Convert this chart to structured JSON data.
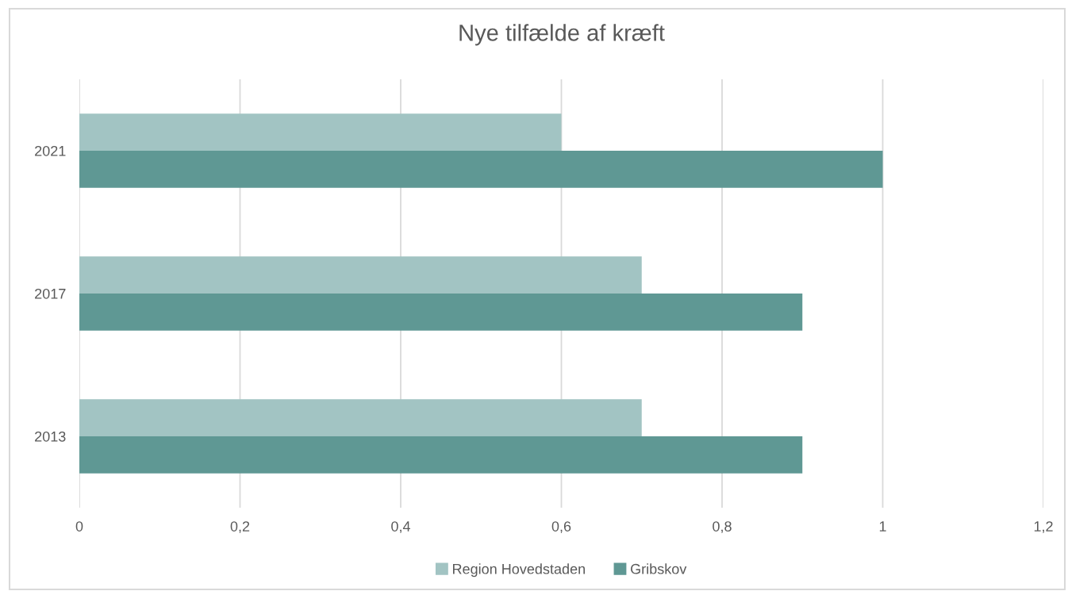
{
  "chart_data": {
    "type": "bar",
    "orientation": "horizontal",
    "title": "Nye tilfælde af kræft",
    "categories": [
      "2021",
      "2017",
      "2013"
    ],
    "series": [
      {
        "name": "Region Hovedstaden",
        "color": "#a2c4c3",
        "values": [
          0.6,
          0.7,
          0.7
        ]
      },
      {
        "name": "Gribskov",
        "color": "#5f9894",
        "values": [
          1.0,
          0.9,
          0.9
        ]
      }
    ],
    "xlim": [
      0,
      1.2
    ],
    "xticks": [
      0,
      {
        "value": 0.2,
        "label": "0,2"
      },
      {
        "value": 0.4,
        "label": "0,4"
      },
      {
        "value": 0.6,
        "label": "0,6"
      },
      {
        "value": 0.8,
        "label": "0,8"
      },
      1,
      {
        "value": 1.2,
        "label": "1,2"
      }
    ],
    "grid": "x",
    "legend": "bottom"
  }
}
